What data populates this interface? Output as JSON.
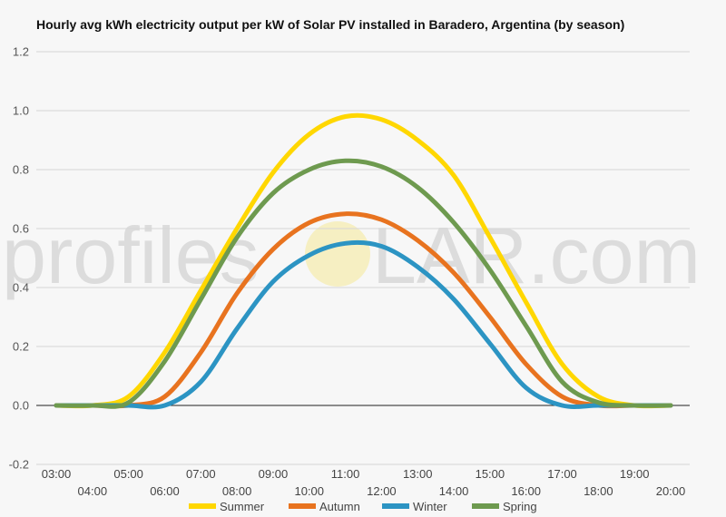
{
  "chart_data": {
    "type": "line",
    "title": "Hourly avg kWh electricity output per kW of Solar PV installed in Baradero, Argentina (by season)",
    "xlabel": "",
    "ylabel": "",
    "ylim": [
      -0.2,
      1.2
    ],
    "yticks": [
      "-0.2",
      "0.0",
      "0.2",
      "0.4",
      "0.6",
      "0.8",
      "1.0",
      "1.2"
    ],
    "x": [
      "03:00",
      "04:00",
      "05:00",
      "06:00",
      "07:00",
      "08:00",
      "09:00",
      "10:00",
      "11:00",
      "12:00",
      "13:00",
      "14:00",
      "15:00",
      "16:00",
      "17:00",
      "18:00",
      "19:00",
      "20:00"
    ],
    "grid": true,
    "legend_position": "bottom",
    "watermark": {
      "left": "profiles",
      "right": "LAR.com"
    },
    "series": [
      {
        "name": "Summer",
        "color": "#FFD700",
        "values": [
          0.0,
          0.0,
          0.03,
          0.18,
          0.39,
          0.6,
          0.79,
          0.92,
          0.98,
          0.97,
          0.9,
          0.78,
          0.57,
          0.35,
          0.14,
          0.03,
          0.0,
          0.0
        ]
      },
      {
        "name": "Autumn",
        "color": "#E8731F",
        "values": [
          0.0,
          0.0,
          0.0,
          0.03,
          0.18,
          0.38,
          0.53,
          0.62,
          0.65,
          0.63,
          0.56,
          0.45,
          0.3,
          0.14,
          0.03,
          0.0,
          0.0,
          0.0
        ]
      },
      {
        "name": "Winter",
        "color": "#2C94C3",
        "values": [
          0.0,
          0.0,
          0.0,
          0.0,
          0.08,
          0.26,
          0.42,
          0.51,
          0.55,
          0.54,
          0.47,
          0.36,
          0.21,
          0.06,
          0.0,
          0.0,
          0.0,
          0.0
        ]
      },
      {
        "name": "Spring",
        "color": "#6E9A4F",
        "values": [
          0.0,
          0.0,
          0.01,
          0.15,
          0.36,
          0.57,
          0.72,
          0.8,
          0.83,
          0.81,
          0.74,
          0.62,
          0.46,
          0.27,
          0.08,
          0.01,
          0.0,
          0.0
        ]
      }
    ]
  }
}
